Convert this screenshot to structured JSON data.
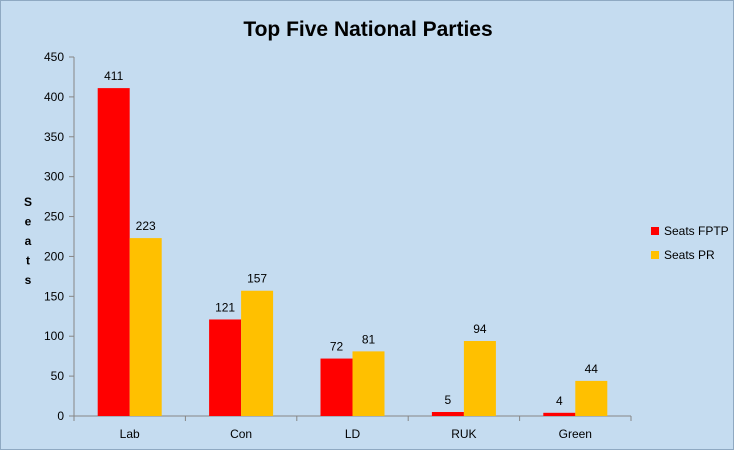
{
  "chart_data": {
    "type": "bar",
    "title": "Top Five National Parties",
    "xlabel": "",
    "ylabel": "Seats",
    "ylim": [
      0,
      450
    ],
    "yticks": [
      0,
      50,
      100,
      150,
      200,
      250,
      300,
      350,
      400,
      450
    ],
    "categories": [
      "Lab",
      "Con",
      "LD",
      "RUK",
      "Green"
    ],
    "series": [
      {
        "name": "Seats FPTP",
        "color": "#ff0000",
        "values": [
          411,
          121,
          72,
          5,
          4
        ]
      },
      {
        "name": "Seats PR",
        "color": "#ffc000",
        "values": [
          223,
          157,
          81,
          94,
          44
        ]
      }
    ],
    "grid": false,
    "legend": "right",
    "data_labels": true
  }
}
